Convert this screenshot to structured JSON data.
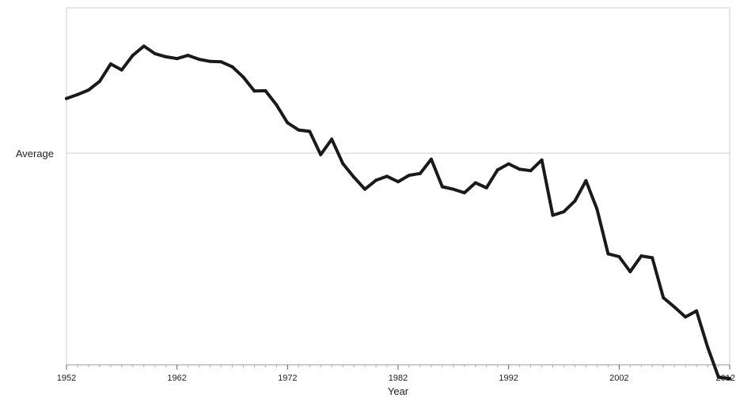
{
  "chart_data": {
    "type": "line",
    "title": "",
    "xlabel": "Year",
    "ylabel": "",
    "xlim": [
      1952,
      2012
    ],
    "ylim": [
      0,
      100
    ],
    "grid": false,
    "x_ticks": [
      1952,
      1962,
      1972,
      1982,
      1992,
      2002,
      2012
    ],
    "x_tick_labels": [
      "1952",
      "1962",
      "1972",
      "1982",
      "1992",
      "2002",
      "2012"
    ],
    "reference_line": {
      "label": "Average",
      "y": 59.3
    },
    "colors": {
      "line": "#1a1a1a",
      "reference": "#cccccc",
      "frame": "#cccccc"
    },
    "series": [
      {
        "x": [
          1952,
          1953,
          1954,
          1955,
          1956,
          1957,
          1958,
          1959,
          1960,
          1961,
          1962,
          1963,
          1964,
          1965,
          1966,
          1967,
          1968,
          1969,
          1970,
          1971,
          1972,
          1973,
          1974,
          1975,
          1976,
          1977,
          1978,
          1979,
          1980,
          1981,
          1982,
          1983,
          1984,
          1985,
          1986,
          1987,
          1988,
          1989,
          1990,
          1991,
          1992,
          1993,
          1994,
          1995,
          1996,
          1997,
          1998,
          1999,
          2000,
          2001,
          2002,
          2003,
          2004,
          2005,
          2006,
          2007,
          2008,
          2009,
          2010,
          2011,
          2012
        ],
        "values": [
          74.6,
          75.7,
          77.0,
          79.4,
          84.3,
          82.6,
          86.7,
          89.3,
          87.2,
          86.3,
          85.8,
          86.7,
          85.6,
          85.0,
          84.9,
          83.5,
          80.6,
          76.7,
          76.8,
          72.8,
          67.8,
          65.8,
          65.4,
          58.9,
          63.2,
          56.4,
          52.6,
          49.2,
          51.7,
          52.8,
          51.3,
          53.1,
          53.6,
          57.6,
          49.9,
          49.2,
          48.2,
          51.0,
          49.6,
          54.6,
          56.3,
          54.8,
          54.4,
          57.4,
          41.9,
          42.9,
          45.9,
          51.6,
          43.6,
          31.1,
          30.3,
          26.1,
          30.5,
          30.0,
          18.8,
          16.2,
          13.4,
          15.1,
          5.0,
          -3.5,
          -3.8
        ]
      }
    ]
  }
}
